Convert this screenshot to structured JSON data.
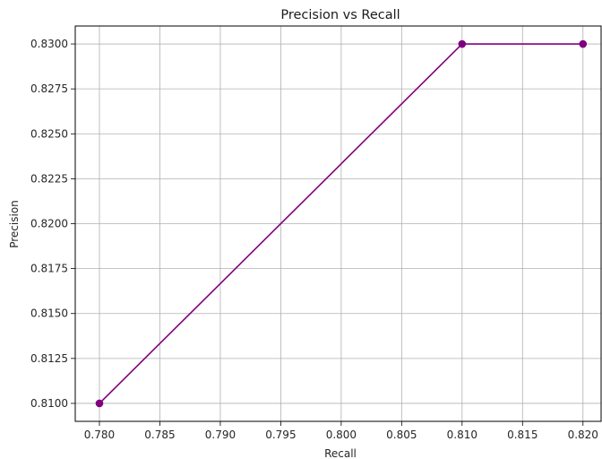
{
  "chart_data": {
    "type": "line",
    "title": "Precision vs Recall",
    "xlabel": "Recall",
    "ylabel": "Precision",
    "x": [
      0.78,
      0.81,
      0.82
    ],
    "y": [
      0.81,
      0.83,
      0.83
    ],
    "xlim": [
      0.778,
      0.8215
    ],
    "ylim": [
      0.809,
      0.831
    ],
    "xticks": [
      "0.780",
      "0.785",
      "0.790",
      "0.795",
      "0.800",
      "0.805",
      "0.810",
      "0.815",
      "0.820"
    ],
    "yticks": [
      "0.8100",
      "0.8125",
      "0.8150",
      "0.8175",
      "0.8200",
      "0.8225",
      "0.8250",
      "0.8275",
      "0.8300"
    ],
    "grid": true,
    "line_color": "#800080",
    "marker": "circle"
  }
}
